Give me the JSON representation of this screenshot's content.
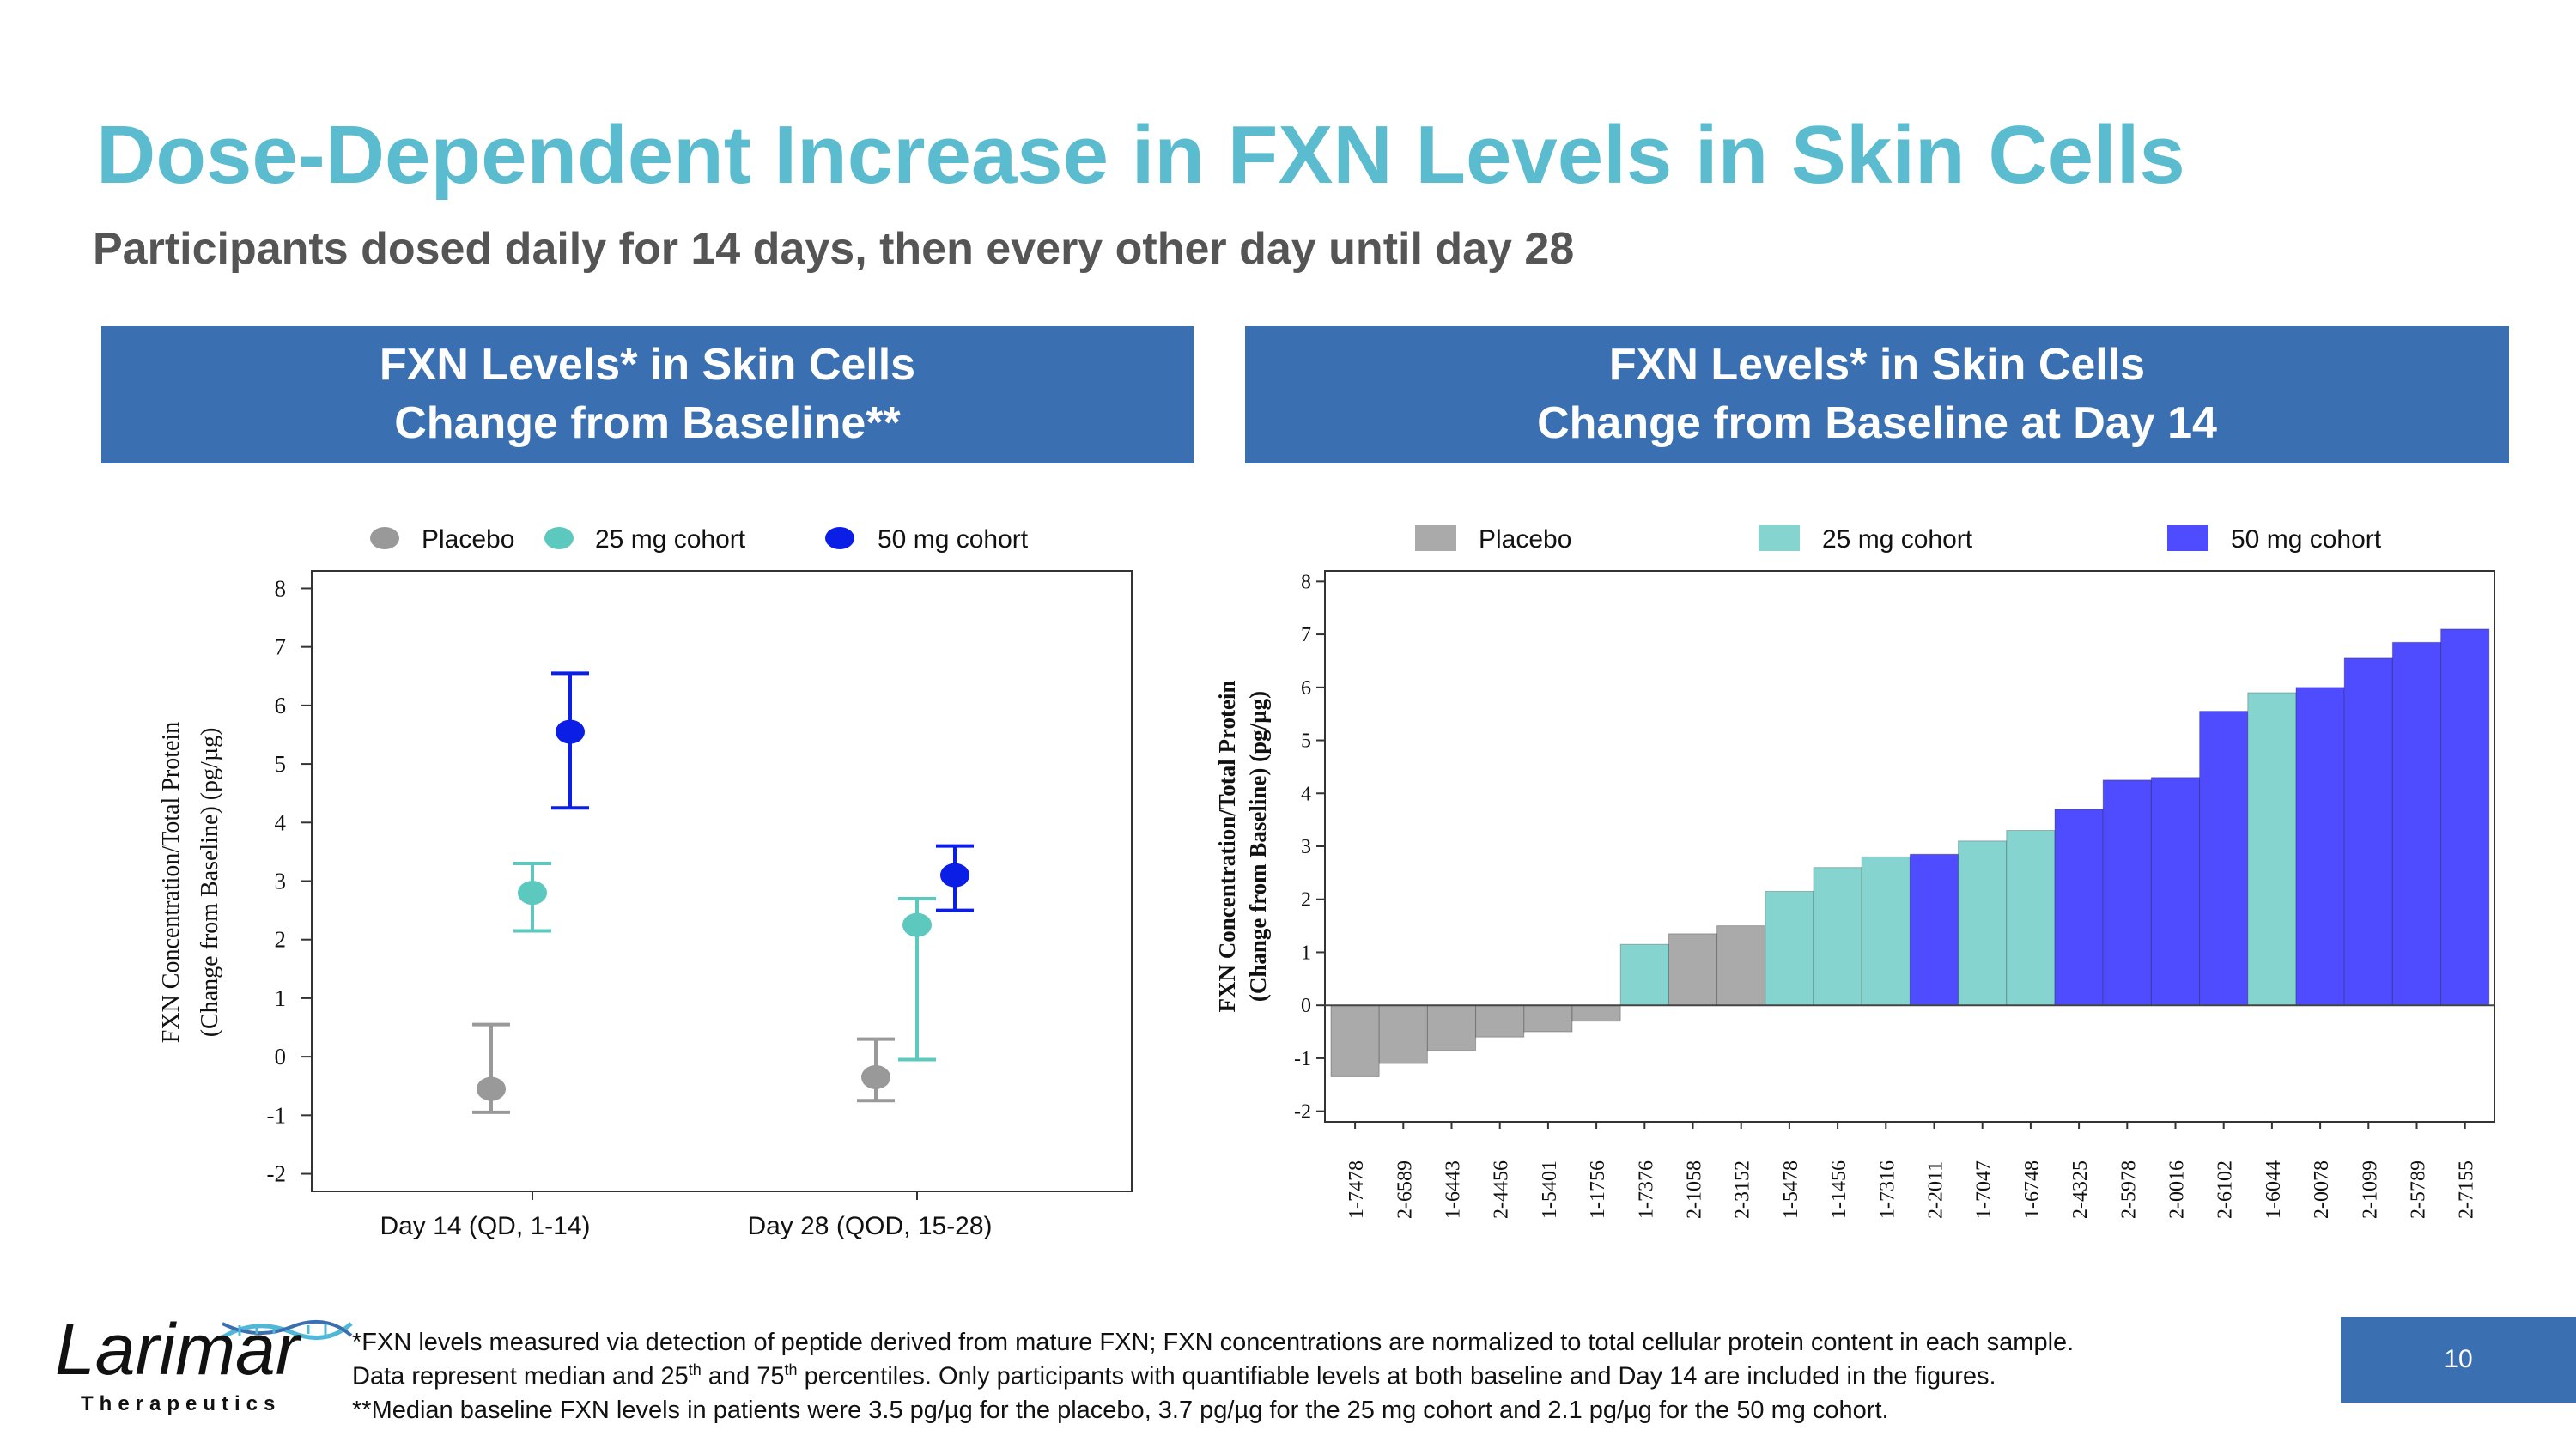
{
  "slide": {
    "title": "Dose-Dependent Increase in FXN Levels in Skin Cells",
    "subtitle": "Participants dosed daily for 14 days, then every other day until day 28",
    "page_number": "10"
  },
  "colors": {
    "accent_title": "#5bbcd0",
    "header_blue": "#3a70b2",
    "placebo_left": "#999999",
    "cohort25_left": "#5cc8be",
    "cohort50_left": "#0a1ee6",
    "placebo_right": "#aaaaaa",
    "cohort25_right": "#86d4cf",
    "cohort50_right": "#4f4bff"
  },
  "panels": {
    "left_header": {
      "line1": "FXN Levels* in Skin Cells",
      "line2": "Change from Baseline**"
    },
    "right_header": {
      "line1": "FXN Levels* in Skin Cells",
      "line2": "Change from Baseline at Day 14"
    }
  },
  "chart_data": [
    {
      "type": "scatter",
      "subtype": "median_with_iqr_error_bars",
      "title": "FXN Levels* in Skin Cells Change from Baseline**",
      "ylabel_line1": "FXN Concentration/Total Protein",
      "ylabel_line2": "(Change from Baseline) (pg/µg)",
      "xlabel": "",
      "ylim": [
        -2.3,
        8.3
      ],
      "yticks": [
        -2,
        -1,
        0,
        1,
        2,
        3,
        4,
        5,
        6,
        7,
        8
      ],
      "yticklabels": [
        "-2",
        "-1",
        "0",
        "1",
        "2",
        "3",
        "4",
        "5",
        "6",
        "7",
        "8"
      ],
      "categories": [
        "Day 14 (QD, 1-14)",
        "Day 28 (QOD, 15-28)"
      ],
      "legend": [
        "Placebo",
        "25 mg cohort",
        "50 mg cohort"
      ],
      "legend_position": "top",
      "series": [
        {
          "name": "Placebo",
          "median": [
            -0.55,
            -0.35
          ],
          "p25": [
            -0.95,
            -0.75
          ],
          "p75": [
            0.55,
            0.3
          ]
        },
        {
          "name": "25 mg cohort",
          "median": [
            2.8,
            2.25
          ],
          "p25": [
            2.15,
            -0.05
          ],
          "p75": [
            3.3,
            2.7
          ]
        },
        {
          "name": "50 mg cohort",
          "median": [
            5.55,
            3.1
          ],
          "p25": [
            4.25,
            2.5
          ],
          "p75": [
            6.55,
            3.6
          ]
        }
      ]
    },
    {
      "type": "bar",
      "subtype": "waterfall",
      "title": "FXN Levels* in Skin Cells Change from Baseline at Day 14",
      "ylabel_line1": "FXN Concentration/Total Protein",
      "ylabel_line2": "(Change from Baseline) (pg/µg)",
      "xlabel": "",
      "ylim": [
        -2.2,
        8.2
      ],
      "yticks": [
        -2,
        -1,
        0,
        1,
        2,
        3,
        4,
        5,
        6,
        7,
        8
      ],
      "yticklabels": [
        "-2",
        "-1",
        "0",
        "1",
        "2",
        "3",
        "4",
        "5",
        "6",
        "7",
        "8"
      ],
      "legend": [
        "Placebo",
        "25 mg cohort",
        "50 mg cohort"
      ],
      "legend_position": "top",
      "categories": [
        "1-7478",
        "2-6589",
        "1-6443",
        "2-4456",
        "1-5401",
        "1-1756",
        "1-7376",
        "2-1058",
        "2-3152",
        "1-5478",
        "1-1456",
        "1-7316",
        "2-2011",
        "1-7047",
        "1-6748",
        "2-4325",
        "2-5978",
        "2-0016",
        "2-6102",
        "1-6044",
        "2-0078",
        "2-1099",
        "2-5789",
        "2-7155"
      ],
      "values": [
        -1.35,
        -1.1,
        -0.85,
        -0.6,
        -0.5,
        -0.3,
        1.15,
        1.35,
        1.5,
        2.15,
        2.6,
        2.8,
        2.85,
        3.1,
        3.3,
        3.7,
        4.25,
        4.3,
        5.55,
        5.9,
        6.0,
        6.55,
        6.85,
        7.1
      ],
      "groups": [
        "Placebo",
        "Placebo",
        "Placebo",
        "Placebo",
        "Placebo",
        "Placebo",
        "25 mg cohort",
        "Placebo",
        "Placebo",
        "25 mg cohort",
        "25 mg cohort",
        "25 mg cohort",
        "50 mg cohort",
        "25 mg cohort",
        "25 mg cohort",
        "50 mg cohort",
        "50 mg cohort",
        "50 mg cohort",
        "50 mg cohort",
        "25 mg cohort",
        "50 mg cohort",
        "50 mg cohort",
        "50 mg cohort",
        "50 mg cohort"
      ]
    }
  ],
  "footnotes": {
    "line1": "*FXN levels measured via detection of peptide derived from mature FXN; FXN concentrations are normalized to total cellular protein content in each sample.",
    "line2_a": "Data represent median and 25",
    "line2_sup1": "th",
    "line2_b": " and 75",
    "line2_sup2": "th",
    "line2_c": " percentiles. Only participants with quantifiable levels at both baseline and Day 14 are included in the figures.",
    "line3": "**Median baseline FXN levels in patients were 3.5 pg/µg for the placebo, 3.7 pg/µg for the 25 mg cohort and 2.1 pg/µg for the 50 mg cohort."
  },
  "logo": {
    "name": "Larimar",
    "tagline": "Therapeutics"
  }
}
